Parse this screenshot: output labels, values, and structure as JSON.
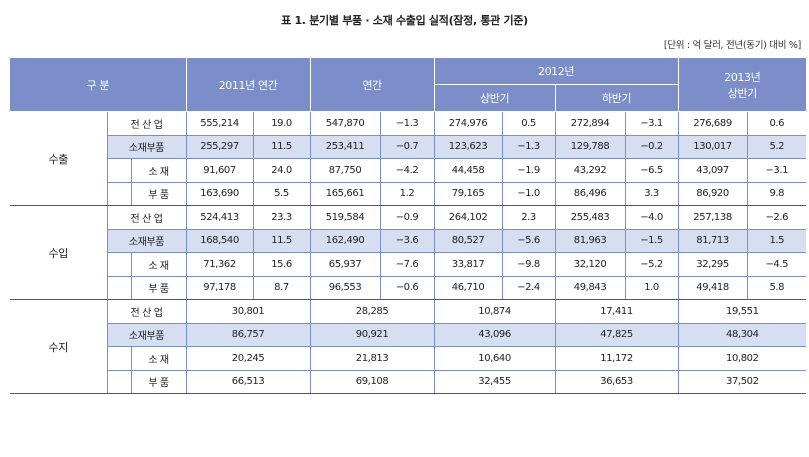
{
  "title": "표 1. 분기별 부품 · 소재 수출입 실적(잠정, 통관 기준)",
  "unit": "[단위 : 억 달러, 전년(동기) 대비 %]",
  "header": {
    "category": "구 분",
    "y2011": "2011년 연간",
    "annual": "연간",
    "y2012": "2012년",
    "h1": "상반기",
    "h2": "하반기",
    "y2013": "2013년",
    "y2013h1": "상반기"
  },
  "sections": [
    {
      "name": "수출",
      "rows": [
        {
          "label": "전 산 업",
          "v": [
            "555,214",
            "19.0",
            "547,870",
            "−1.3",
            "274,976",
            "0.5",
            "272,894",
            "−3.1",
            "276,689",
            "0.6"
          ]
        },
        {
          "label": "소재부품",
          "v": [
            "255,297",
            "11.5",
            "253,411",
            "−0.7",
            "123,623",
            "−1.3",
            "129,788",
            "−0.2",
            "130,017",
            "5.2"
          ]
        },
        {
          "label": "소 재",
          "v": [
            "91,607",
            "24.0",
            "87,750",
            "−4.2",
            "44,458",
            "−1.9",
            "43,292",
            "−6.5",
            "43,097",
            "−3.1"
          ]
        },
        {
          "label": "부 품",
          "v": [
            "163,690",
            "5.5",
            "165,661",
            "1.2",
            "79,165",
            "−1.0",
            "86,496",
            "3.3",
            "86,920",
            "9.8"
          ]
        }
      ]
    },
    {
      "name": "수입",
      "rows": [
        {
          "label": "전 산 업",
          "v": [
            "524,413",
            "23.3",
            "519,584",
            "−0.9",
            "264,102",
            "2.3",
            "255,483",
            "−4.0",
            "257,138",
            "−2.6"
          ]
        },
        {
          "label": "소재부품",
          "v": [
            "168,540",
            "11.5",
            "162,490",
            "−3.6",
            "80,527",
            "−5.6",
            "81,963",
            "−1.5",
            "81,713",
            "1.5"
          ]
        },
        {
          "label": "소 재",
          "v": [
            "71,362",
            "15.6",
            "65,937",
            "−7.6",
            "33,817",
            "−9.8",
            "32,120",
            "−5.2",
            "32,295",
            "−4.5"
          ]
        },
        {
          "label": "부 품",
          "v": [
            "97,178",
            "8.7",
            "96,553",
            "−0.6",
            "46,710",
            "−2.4",
            "49,843",
            "1.0",
            "49,418",
            "5.8"
          ]
        }
      ]
    },
    {
      "name": "수지",
      "rows": [
        {
          "label": "전 산 업",
          "v": [
            "30,801",
            "28,285",
            "10,874",
            "17,411",
            "19,551"
          ]
        },
        {
          "label": "소재부품",
          "v": [
            "86,757",
            "90,921",
            "43,096",
            "47,825",
            "48,304"
          ]
        },
        {
          "label": "소 재",
          "v": [
            "20,245",
            "21,813",
            "10,640",
            "11,172",
            "10,802"
          ]
        },
        {
          "label": "부 품",
          "v": [
            "66,513",
            "69,108",
            "32,455",
            "36,653",
            "37,502"
          ]
        }
      ]
    }
  ]
}
